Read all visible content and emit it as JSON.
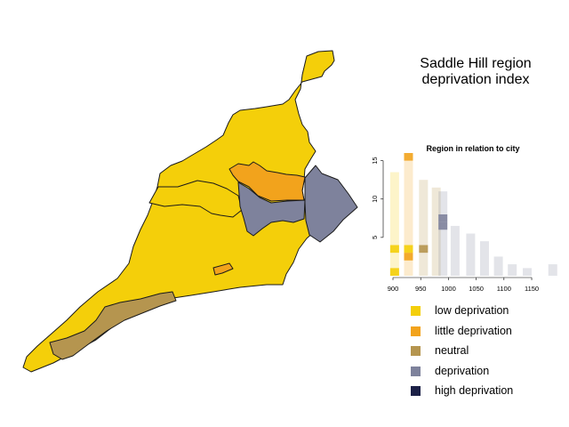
{
  "title_line1": "Saddle Hill region",
  "title_line2": "deprivation index",
  "colors": {
    "low": "#f4cf0a",
    "little": "#f2a31c",
    "neutral": "#b5954f",
    "deprivation": "#7e829c",
    "high": "#1c2147"
  },
  "legend": [
    {
      "label": "low deprivation",
      "color": "#f4cf0a"
    },
    {
      "label": "little deprivation",
      "color": "#f2a31c"
    },
    {
      "label": "neutral",
      "color": "#b5954f"
    },
    {
      "label": "deprivation",
      "color": "#7e829c"
    },
    {
      "label": "high deprivation",
      "color": "#1c2147"
    }
  ],
  "map_regions": [
    {
      "name": "main-low-deprivation-area",
      "category": "low"
    },
    {
      "name": "northwest-low-deprivation-area",
      "category": "low"
    },
    {
      "name": "central-little-deprivation-area",
      "category": "little"
    },
    {
      "name": "small-little-deprivation-area",
      "category": "little"
    },
    {
      "name": "west-deprivation-area",
      "category": "deprivation"
    },
    {
      "name": "east-deprivation-area",
      "category": "deprivation"
    },
    {
      "name": "coastal-neutral-area",
      "category": "neutral"
    }
  ],
  "chart_data": {
    "type": "bar",
    "title": "Region in relation to city",
    "xlabel": "",
    "ylabel": "",
    "x_ticks": [
      900,
      950,
      1000,
      1050,
      1100,
      1150
    ],
    "y_ticks": [
      5,
      10,
      15
    ],
    "xlim": [
      900,
      1190
    ],
    "ylim": [
      0,
      16
    ],
    "city_distribution": [
      {
        "x": 903,
        "count": 13.5,
        "category": "low"
      },
      {
        "x": 928,
        "count": 15,
        "category": "little"
      },
      {
        "x": 955,
        "count": 12.5,
        "category": "neutral"
      },
      {
        "x": 978,
        "count": 11.5,
        "category": "neutral"
      },
      {
        "x": 990,
        "count": 11,
        "category": "deprivation"
      },
      {
        "x": 1012,
        "count": 6.5,
        "category": "deprivation"
      },
      {
        "x": 1040,
        "count": 5.5,
        "category": "deprivation"
      },
      {
        "x": 1065,
        "count": 4.5,
        "category": "deprivation"
      },
      {
        "x": 1090,
        "count": 2.5,
        "category": "deprivation"
      },
      {
        "x": 1115,
        "count": 1.5,
        "category": "deprivation"
      },
      {
        "x": 1142,
        "count": 1,
        "category": "deprivation"
      },
      {
        "x": 1188,
        "count": 1.5,
        "category": "deprivation"
      }
    ],
    "region_areas": [
      {
        "x": 903,
        "bin": 1,
        "category": "low"
      },
      {
        "x": 903,
        "bin": 4,
        "category": "low"
      },
      {
        "x": 928,
        "bin": 3,
        "category": "little"
      },
      {
        "x": 928,
        "bin": 4,
        "category": "low"
      },
      {
        "x": 928,
        "bin": 16,
        "category": "little"
      },
      {
        "x": 955,
        "bin": 4,
        "category": "neutral"
      },
      {
        "x": 990,
        "bin": 7,
        "category": "deprivation"
      },
      {
        "x": 990,
        "bin": 8,
        "category": "deprivation"
      }
    ]
  }
}
